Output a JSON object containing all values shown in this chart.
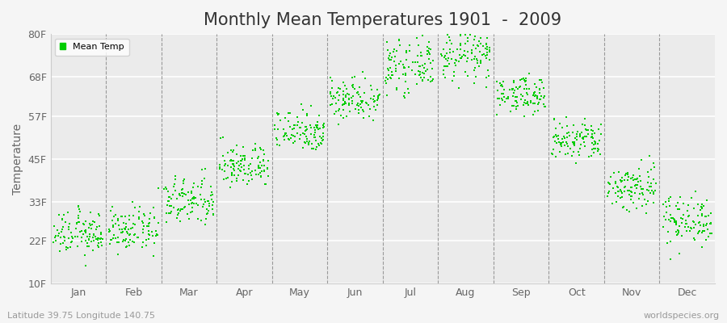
{
  "title": "Monthly Mean Temperatures 1901  -  2009",
  "ylabel": "Temperature",
  "xlabel_labels": [
    "Jan",
    "Feb",
    "Mar",
    "Apr",
    "May",
    "Jun",
    "Jul",
    "Aug",
    "Sep",
    "Oct",
    "Nov",
    "Dec"
  ],
  "ytick_values": [
    10,
    22,
    33,
    45,
    57,
    68,
    80
  ],
  "ytick_labels": [
    "10F",
    "22F",
    "33F",
    "45F",
    "57F",
    "68F",
    "80F"
  ],
  "ylim": [
    10,
    80
  ],
  "legend_label": "Mean Temp",
  "dot_color": "#00cc00",
  "background_color": "#ebebeb",
  "fig_bg_color": "#f5f5f5",
  "footer_left": "Latitude 39.75 Longitude 140.75",
  "footer_right": "worldspecies.org",
  "monthly_means": [
    24,
    25,
    33,
    43,
    53,
    62,
    71,
    74,
    63,
    50,
    37,
    28
  ],
  "monthly_stds": [
    3.0,
    3.0,
    3.5,
    3.0,
    3.0,
    3.0,
    3.5,
    3.5,
    2.5,
    3.0,
    3.5,
    3.5
  ],
  "n_years": 109,
  "title_fontsize": 15,
  "axis_label_fontsize": 10,
  "tick_fontsize": 9,
  "footer_fontsize": 8
}
